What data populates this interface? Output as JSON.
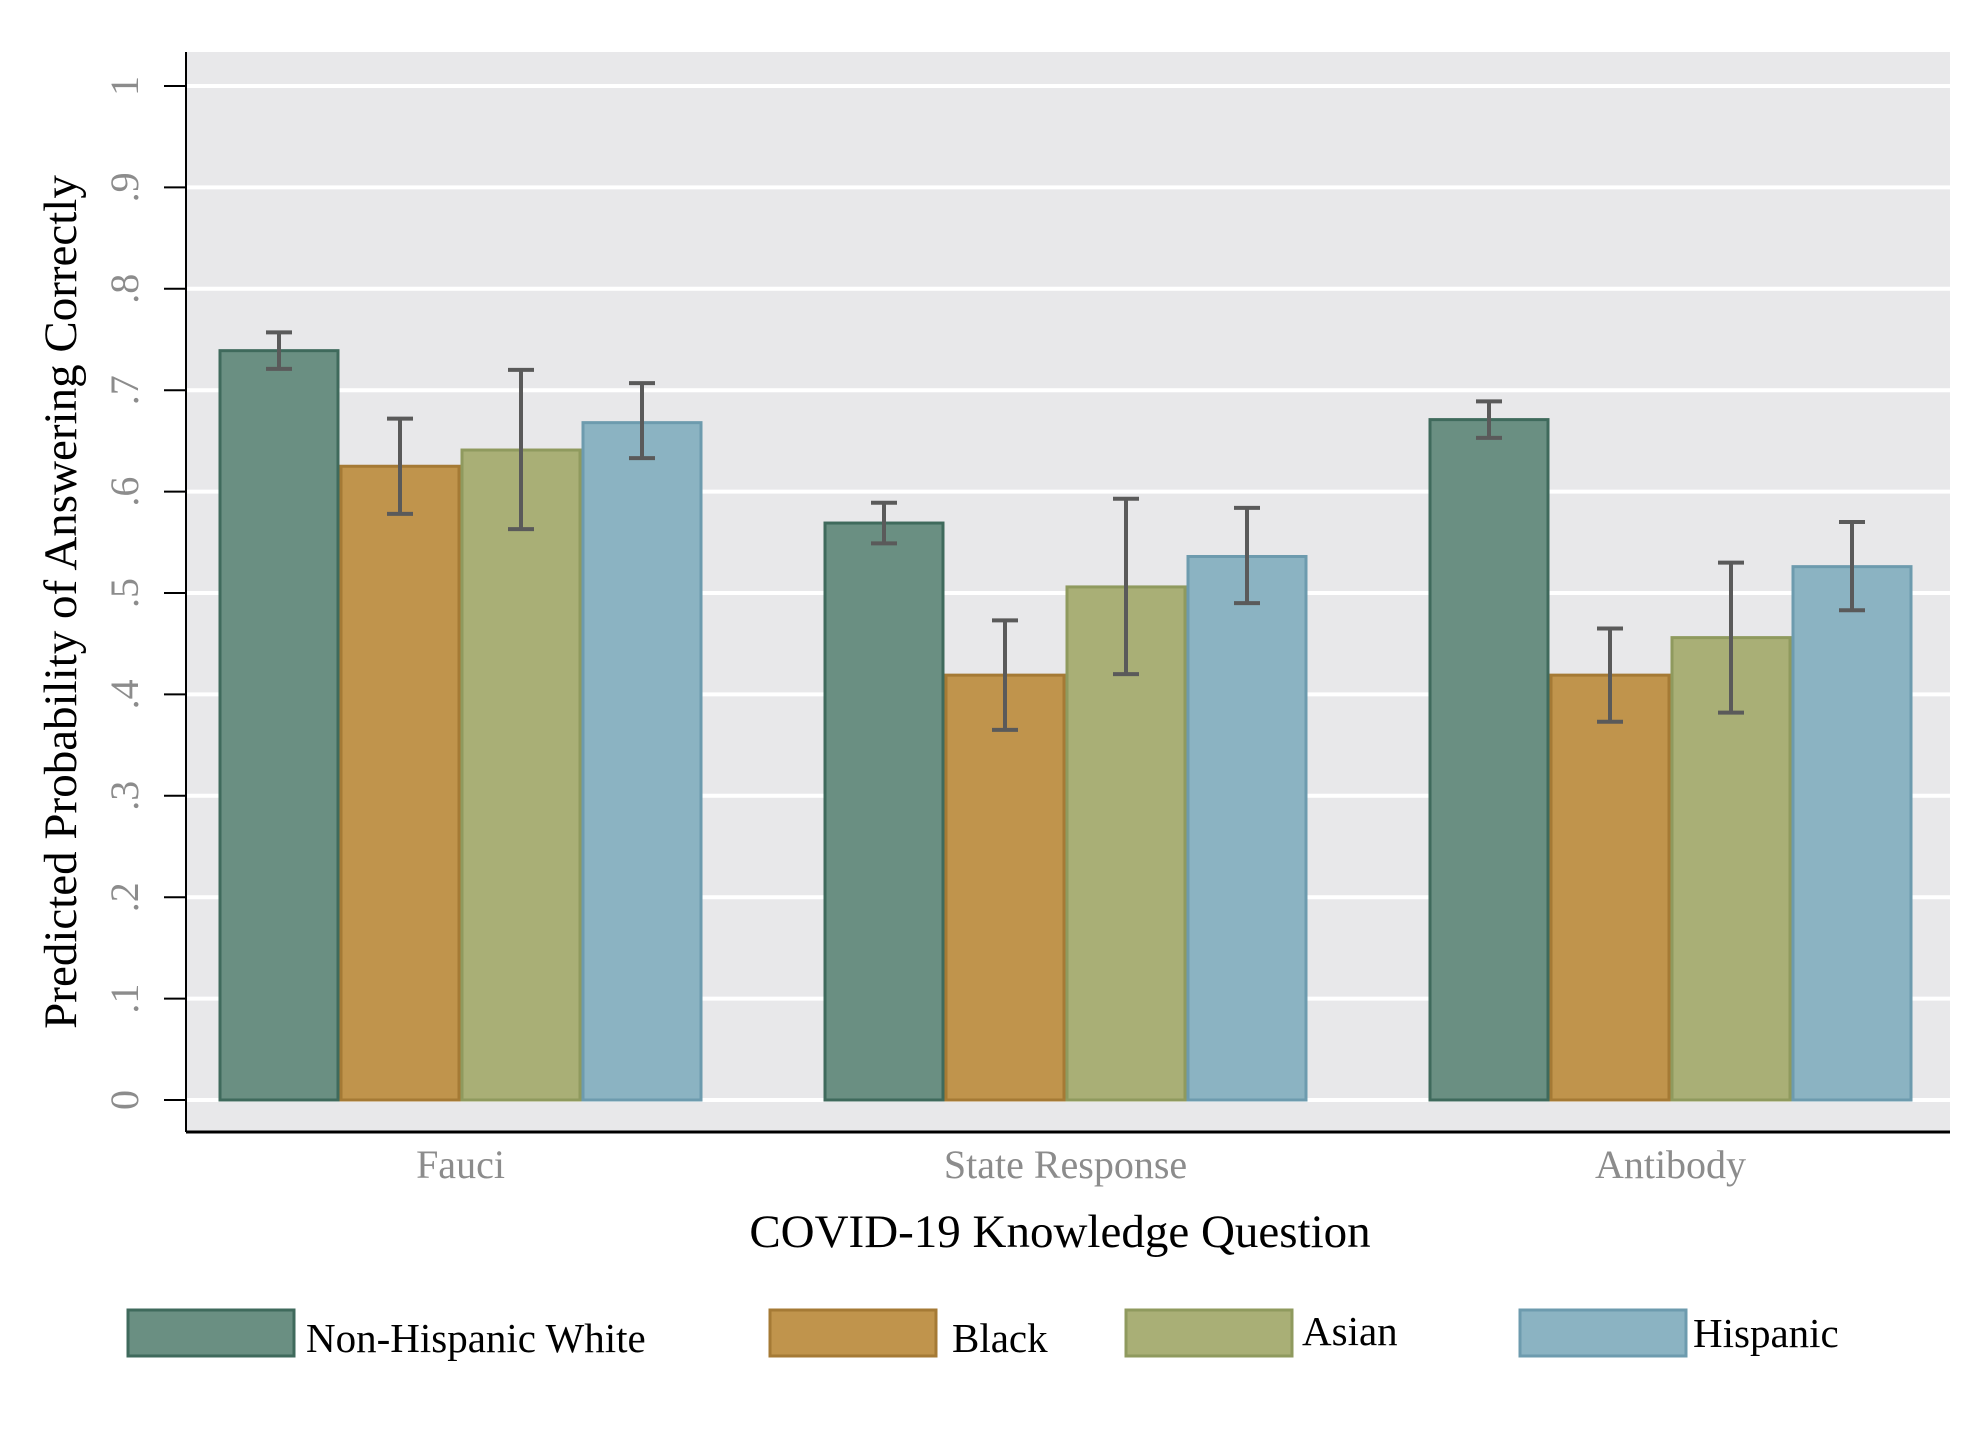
{
  "chart_data": {
    "type": "bar",
    "title": "",
    "xlabel": "COVID-19 Knowledge Question",
    "ylabel": "Predicted Probability of Answering Correctly",
    "ylim": [
      0,
      1.03
    ],
    "yticks": [
      0,
      0.1,
      0.2,
      0.3,
      0.4,
      0.5,
      0.6,
      0.7,
      0.8,
      0.9,
      1
    ],
    "ytick_labels": [
      "0",
      ".1",
      ".2",
      ".3",
      ".4",
      ".5",
      ".6",
      ".7",
      ".8",
      ".9",
      "1"
    ],
    "grid": true,
    "legend_position": "bottom",
    "categories": [
      "Fauci",
      "State Response",
      "Antibody"
    ],
    "series": [
      {
        "name": "Non-Hispanic White",
        "color": "#6a8f82",
        "edge": "#3f6a5c",
        "values": [
          0.739,
          0.569,
          0.671
        ],
        "ci_low": [
          0.721,
          0.549,
          0.653
        ],
        "ci_high": [
          0.757,
          0.589,
          0.689
        ]
      },
      {
        "name": "Black",
        "color": "#c0944c",
        "edge": "#a57a35",
        "values": [
          0.625,
          0.419,
          0.419
        ],
        "ci_low": [
          0.578,
          0.365,
          0.373
        ],
        "ci_high": [
          0.672,
          0.473,
          0.465
        ]
      },
      {
        "name": "Asian",
        "color": "#a9af76",
        "edge": "#8f9a5e",
        "values": [
          0.641,
          0.506,
          0.456
        ],
        "ci_low": [
          0.563,
          0.42,
          0.382
        ],
        "ci_high": [
          0.72,
          0.593,
          0.53
        ]
      },
      {
        "name": "Hispanic",
        "color": "#8bb3c2",
        "edge": "#6d9bae",
        "values": [
          0.668,
          0.536,
          0.526
        ],
        "ci_low": [
          0.633,
          0.49,
          0.483
        ],
        "ci_high": [
          0.707,
          0.584,
          0.57
        ]
      }
    ],
    "plot_background": "#e8e8ea",
    "errorbar_color": "#5a5a5a"
  }
}
